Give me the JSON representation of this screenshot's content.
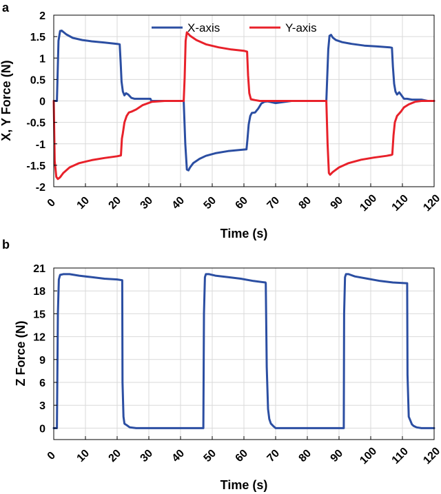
{
  "chart_data": [
    {
      "panel": "a",
      "type": "line",
      "xlabel": "Time (s)",
      "ylabel": "X, Y Force (N)",
      "xlim": [
        0,
        120
      ],
      "ylim": [
        -2,
        2
      ],
      "xticks": [
        0,
        10,
        20,
        30,
        40,
        50,
        60,
        70,
        80,
        90,
        100,
        110,
        120
      ],
      "yticks": [
        -2,
        -1.5,
        -1,
        -0.5,
        0,
        0.5,
        1,
        1.5,
        2
      ],
      "ytick_labels": [
        "-2",
        "-1.5",
        "-1",
        "-0.5",
        "0",
        "0.5",
        "1",
        "1.5",
        "2"
      ],
      "grid": true,
      "legend": "top-center",
      "series": [
        {
          "name": "X-axis",
          "color": "#2b4ea2",
          "x": [
            0,
            1,
            1.5,
            2,
            2.5,
            4,
            6,
            9,
            12,
            16,
            20,
            20.8,
            21.1,
            21.4,
            21.8,
            22.3,
            22.8,
            23.5,
            24.5,
            25.5,
            27,
            29,
            30.5,
            30.8,
            31.5,
            35,
            41,
            41.5,
            42,
            42.5,
            43,
            44,
            46,
            48,
            51,
            55,
            59,
            60.8,
            61.1,
            61.5,
            62,
            62.5,
            63.5,
            64.5,
            65.5,
            66.5,
            67.5,
            70,
            75,
            80,
            86,
            86.6,
            87,
            87.5,
            88,
            89,
            91,
            94,
            98,
            102,
            106,
            106.7,
            107,
            107.4,
            107.8,
            108.3,
            109,
            109.8,
            110.5,
            111.5,
            113,
            116,
            118,
            120
          ],
          "y": [
            0,
            0,
            1.4,
            1.63,
            1.64,
            1.55,
            1.47,
            1.42,
            1.39,
            1.36,
            1.33,
            1.32,
            0.9,
            0.45,
            0.22,
            0.13,
            0.18,
            0.15,
            0.07,
            0.05,
            0.05,
            0.05,
            0.05,
            0.0,
            0.0,
            0.0,
            0.0,
            -1.0,
            -1.6,
            -1.62,
            -1.55,
            -1.45,
            -1.35,
            -1.28,
            -1.22,
            -1.17,
            -1.14,
            -1.13,
            -0.9,
            -0.55,
            -0.35,
            -0.28,
            -0.27,
            -0.18,
            -0.06,
            -0.02,
            -0.01,
            -0.05,
            0.0,
            0.0,
            0.0,
            1.2,
            1.52,
            1.54,
            1.48,
            1.42,
            1.37,
            1.33,
            1.29,
            1.27,
            1.25,
            1.24,
            0.8,
            0.4,
            0.22,
            0.15,
            0.2,
            0.12,
            0.05,
            0.05,
            0.03,
            0.03,
            0.0,
            0.0
          ]
        },
        {
          "name": "Y-axis",
          "color": "#e8212a",
          "x": [
            0,
            0.3,
            0.8,
            1.3,
            2,
            3,
            5,
            8,
            12,
            16,
            20,
            21.2,
            21.5,
            21.8,
            22.3,
            23,
            23.7,
            24.5,
            26,
            28,
            29.5,
            31,
            35,
            41,
            41.3,
            41.6,
            42,
            43,
            45,
            48,
            52,
            56,
            60,
            61,
            61.3,
            61.7,
            62.2,
            63.5,
            65,
            67,
            69,
            70,
            75,
            80,
            86,
            86.4,
            86.8,
            87.2,
            88,
            90,
            93,
            97,
            101,
            105,
            106.5,
            106.8,
            107.2,
            107.6,
            108.3,
            109.5,
            110.5,
            112,
            114,
            116,
            118,
            120
          ],
          "y": [
            0,
            -1.4,
            -1.77,
            -1.82,
            -1.78,
            -1.68,
            -1.55,
            -1.45,
            -1.38,
            -1.33,
            -1.29,
            -1.27,
            -0.88,
            -0.75,
            -0.5,
            -0.35,
            -0.27,
            -0.25,
            -0.2,
            -0.1,
            -0.06,
            -0.02,
            0.0,
            0.0,
            0.55,
            1.4,
            1.6,
            1.52,
            1.42,
            1.32,
            1.25,
            1.2,
            1.17,
            1.15,
            0.6,
            0.18,
            0.04,
            0.02,
            0.0,
            0.0,
            0.0,
            0.0,
            0.0,
            0.0,
            0.0,
            -1.0,
            -1.68,
            -1.72,
            -1.66,
            -1.55,
            -1.45,
            -1.37,
            -1.32,
            -1.28,
            -1.26,
            -1.25,
            -0.8,
            -0.5,
            -0.35,
            -0.25,
            -0.15,
            -0.08,
            -0.02,
            0.0,
            0.0,
            0.0
          ]
        }
      ]
    },
    {
      "panel": "b",
      "type": "line",
      "xlabel": "Time (s)",
      "ylabel": "Z Force (N)",
      "xlim": [
        0,
        120
      ],
      "ylim": [
        -1.5,
        21
      ],
      "xticks": [
        0,
        10,
        20,
        30,
        40,
        50,
        60,
        70,
        80,
        90,
        100,
        110,
        120
      ],
      "yticks": [
        0,
        3,
        6,
        9,
        12,
        15,
        18,
        21
      ],
      "ytick_labels": [
        "0",
        "3",
        "6",
        "9",
        "12",
        "15",
        "18",
        "21"
      ],
      "grid": true,
      "series": [
        {
          "color": "#2b4ea2",
          "x": [
            0,
            1,
            1.3,
            1.6,
            2,
            3,
            5,
            8,
            12,
            16,
            20,
            21.6,
            21.7,
            22,
            22.3,
            22.6,
            23,
            24,
            26,
            30,
            40,
            47.2,
            47.4,
            47.7,
            48,
            49,
            51,
            55,
            59,
            63,
            66.8,
            66.9,
            67.2,
            67.6,
            68,
            68.5,
            69.2,
            70,
            80,
            91.5,
            91.6,
            91.9,
            92.2,
            93,
            95,
            99,
            103,
            107,
            111.5,
            111.6,
            112,
            112.5,
            113,
            113.5,
            114.5,
            116,
            120
          ],
          "y": [
            0,
            0,
            15,
            19.5,
            20.1,
            20.2,
            20.2,
            20.0,
            19.8,
            19.6,
            19.5,
            19.4,
            6,
            1.5,
            0.6,
            0.5,
            0.4,
            0.1,
            0.0,
            0.0,
            0.0,
            0.0,
            15,
            19.8,
            20.2,
            20.2,
            20.0,
            19.8,
            19.6,
            19.3,
            19.1,
            19.0,
            8,
            2.5,
            1.2,
            0.6,
            0.3,
            0.0,
            0.0,
            0.0,
            15,
            19.8,
            20.2,
            20.2,
            19.9,
            19.6,
            19.3,
            19.1,
            19.0,
            7,
            1.5,
            1.0,
            0.5,
            0.3,
            0.1,
            0.0,
            0.0
          ]
        }
      ]
    }
  ]
}
